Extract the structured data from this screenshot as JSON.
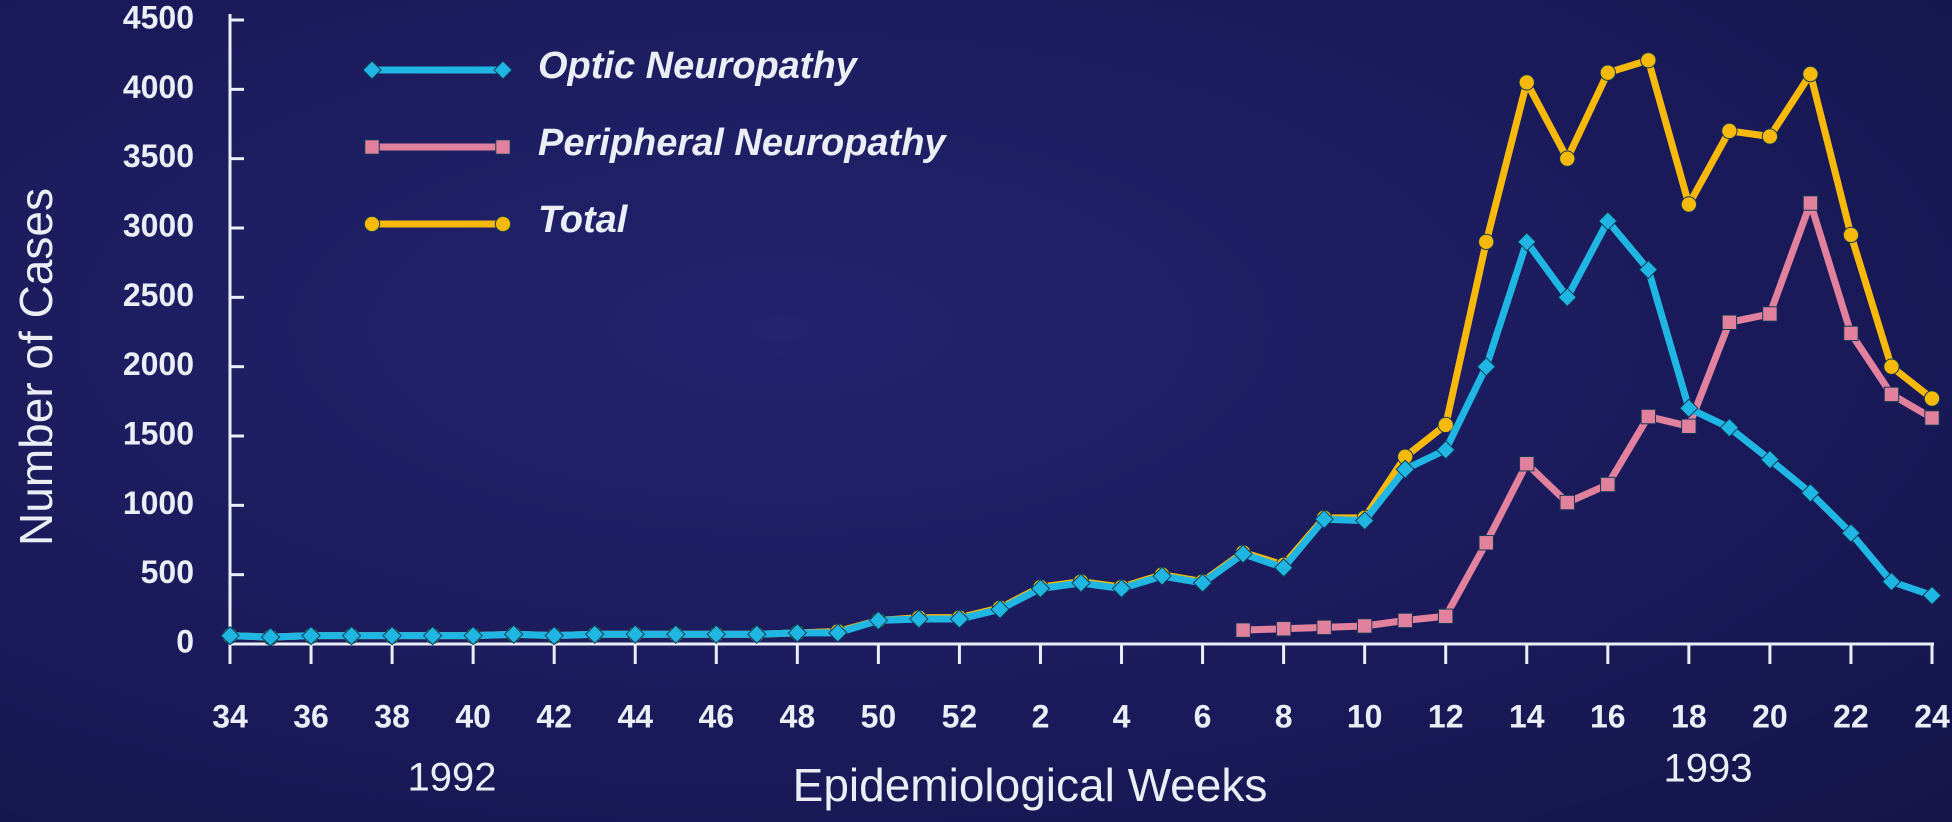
{
  "chart_data": {
    "type": "line",
    "ylabel": "Number of Cases",
    "xlabel": "Epidemiological Weeks",
    "annotations": [
      "1992",
      "1993"
    ],
    "categories": [
      "34",
      null,
      "36",
      null,
      "38",
      null,
      "40",
      null,
      "42",
      null,
      "44",
      null,
      "46",
      null,
      "48",
      null,
      "50",
      null,
      "52",
      null,
      "2",
      null,
      "4",
      null,
      "6",
      null,
      "8",
      null,
      "10",
      null,
      "12",
      null,
      "14",
      null,
      "16",
      null,
      "18",
      null,
      "20",
      null,
      "22",
      null,
      "24"
    ],
    "ylim": [
      0,
      4500
    ],
    "yticks": [
      0,
      500,
      1000,
      1500,
      2000,
      2500,
      3000,
      3500,
      4000,
      4500
    ],
    "series": [
      {
        "name": "Optic  Neuropathy",
        "color": "#1fb6e3",
        "marker": "diamond",
        "values": [
          60,
          50,
          60,
          60,
          60,
          60,
          60,
          70,
          60,
          70,
          70,
          70,
          70,
          70,
          80,
          80,
          170,
          180,
          180,
          250,
          400,
          440,
          400,
          490,
          440,
          650,
          550,
          900,
          890,
          1260,
          1400,
          2000,
          2900,
          2500,
          3050,
          2700,
          1700,
          1560,
          1330,
          1090,
          800,
          450,
          350
        ]
      },
      {
        "name": "Peripheral Neuropathy",
        "color": "#e2819d",
        "marker": "square",
        "values": [
          null,
          null,
          null,
          null,
          null,
          null,
          null,
          null,
          null,
          null,
          null,
          null,
          null,
          null,
          null,
          null,
          null,
          null,
          null,
          null,
          null,
          null,
          null,
          null,
          null,
          100,
          110,
          120,
          130,
          170,
          200,
          730,
          1300,
          1020,
          1150,
          1640,
          1570,
          2320,
          2380,
          3180,
          2240,
          1800,
          1630
        ]
      },
      {
        "name": "Total",
        "color": "#f6b90c",
        "marker": "circle",
        "values": [
          60,
          50,
          60,
          60,
          60,
          60,
          60,
          70,
          60,
          70,
          70,
          70,
          70,
          70,
          80,
          90,
          170,
          190,
          190,
          260,
          410,
          450,
          410,
          500,
          450,
          660,
          570,
          910,
          910,
          1350,
          1580,
          2900,
          4050,
          3500,
          4120,
          4210,
          3170,
          3700,
          3660,
          4110,
          2950,
          2000,
          1770
        ]
      }
    ]
  }
}
